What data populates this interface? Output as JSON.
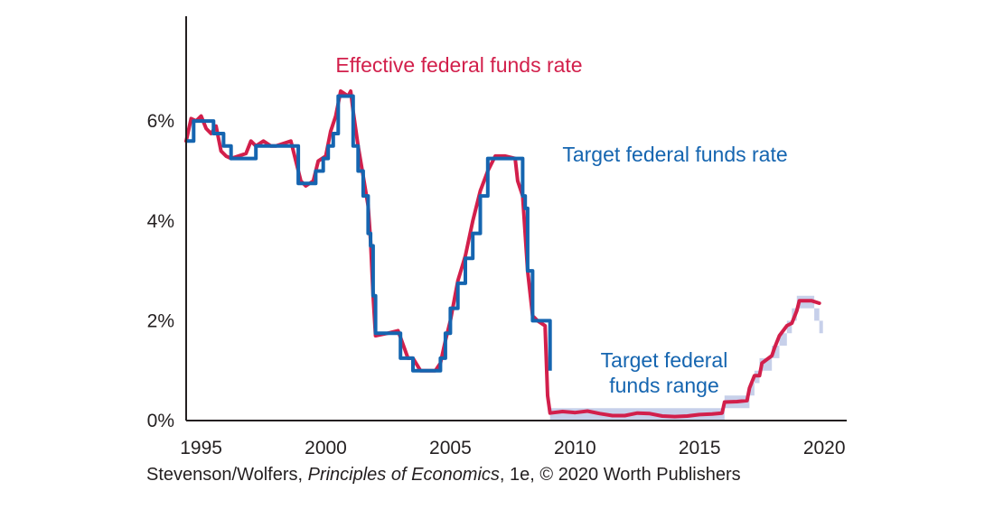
{
  "chart_data": {
    "type": "line",
    "title": "",
    "xlabel": "",
    "ylabel": "",
    "xlim": [
      1994.4,
      2020.9
    ],
    "ylim": [
      0,
      8.1
    ],
    "x_ticks": [
      1995,
      2000,
      2005,
      2010,
      2015,
      2020
    ],
    "y_ticks": [
      {
        "value": 0,
        "label": "0%"
      },
      {
        "value": 2,
        "label": "2%"
      },
      {
        "value": 4,
        "label": "4%"
      },
      {
        "value": 6,
        "label": "6%"
      }
    ],
    "grid": false,
    "legend": "none (series labeled directly on plot)",
    "colors": {
      "effective": "#d21f4b",
      "target": "#1565b0",
      "range": "#c7d0ea",
      "axis": "#231f20"
    },
    "series": [
      {
        "name": "Effective federal funds rate",
        "note": "monthly effective rate, noisy around target",
        "x": [
          1994.4,
          1994.6,
          1994.8,
          1995.0,
          1995.2,
          1995.4,
          1995.6,
          1995.8,
          1996.0,
          1996.2,
          1996.5,
          1996.8,
          1997.0,
          1997.2,
          1997.5,
          1997.8,
          1998.0,
          1998.3,
          1998.6,
          1998.8,
          1999.0,
          1999.2,
          1999.5,
          1999.7,
          2000.0,
          2000.2,
          2000.4,
          2000.6,
          2000.9,
          2001.0,
          2001.1,
          2001.3,
          2001.5,
          2001.7,
          2001.8,
          2001.9,
          2002.0,
          2002.5,
          2002.9,
          2003.3,
          2003.5,
          2003.8,
          2004.2,
          2004.4,
          2004.6,
          2004.8,
          2005.0,
          2005.3,
          2005.6,
          2005.9,
          2006.2,
          2006.5,
          2006.8,
          2007.2,
          2007.6,
          2007.7,
          2007.9,
          2008.1,
          2008.3,
          2008.5,
          2008.8,
          2008.9,
          2009.0,
          2009.5,
          2010.0,
          2010.5,
          2011.0,
          2011.5,
          2012.0,
          2012.5,
          2013.0,
          2013.5,
          2014.0,
          2014.5,
          2015.0,
          2015.5,
          2015.9,
          2016.0,
          2016.5,
          2016.9,
          2017.0,
          2017.2,
          2017.4,
          2017.5,
          2017.9,
          2018.0,
          2018.2,
          2018.5,
          2018.7,
          2018.9,
          2019.0,
          2019.5,
          2019.8
        ],
        "values": [
          5.6,
          6.05,
          6.0,
          6.1,
          5.85,
          5.75,
          5.9,
          5.4,
          5.3,
          5.25,
          5.3,
          5.35,
          5.6,
          5.5,
          5.6,
          5.5,
          5.5,
          5.55,
          5.6,
          5.2,
          4.8,
          4.7,
          4.8,
          5.2,
          5.3,
          5.8,
          6.1,
          6.6,
          6.5,
          6.6,
          6.2,
          5.5,
          4.9,
          4.3,
          3.6,
          2.5,
          1.7,
          1.75,
          1.8,
          1.25,
          1.25,
          1.0,
          1.0,
          1.0,
          1.15,
          1.6,
          2.0,
          2.8,
          3.3,
          4.0,
          4.6,
          5.0,
          5.3,
          5.3,
          5.25,
          4.8,
          4.5,
          3.0,
          2.1,
          2.0,
          1.9,
          0.5,
          0.15,
          0.18,
          0.16,
          0.19,
          0.14,
          0.1,
          0.1,
          0.15,
          0.14,
          0.09,
          0.08,
          0.09,
          0.12,
          0.13,
          0.15,
          0.37,
          0.38,
          0.4,
          0.65,
          0.9,
          0.9,
          1.15,
          1.3,
          1.45,
          1.7,
          1.9,
          1.95,
          2.2,
          2.4,
          2.4,
          2.35
        ]
      },
      {
        "name": "Target federal funds rate",
        "note": "step function, ends at end of 2008",
        "x": [
          1994.4,
          1994.7,
          1995.0,
          1995.5,
          1995.9,
          1996.2,
          1997.2,
          1998.7,
          1998.9,
          1999.5,
          1999.6,
          1999.9,
          2000.1,
          2000.3,
          2000.5,
          2001.0,
          2001.1,
          2001.3,
          2001.5,
          2001.7,
          2001.8,
          2001.9,
          2002.0,
          2002.8,
          2003.0,
          2003.5,
          2004.5,
          2004.6,
          2004.8,
          2005.0,
          2005.3,
          2005.6,
          2005.9,
          2006.2,
          2006.5,
          2007.7,
          2007.9,
          2008.0,
          2008.1,
          2008.3,
          2008.8,
          2009.0
        ],
        "values": [
          5.6,
          6.0,
          6.0,
          5.75,
          5.5,
          5.25,
          5.5,
          5.5,
          4.75,
          4.75,
          5.0,
          5.25,
          5.5,
          5.75,
          6.5,
          6.5,
          5.5,
          5.0,
          4.5,
          3.75,
          3.5,
          2.5,
          1.75,
          1.75,
          1.25,
          1.0,
          1.0,
          1.25,
          1.75,
          2.25,
          2.75,
          3.25,
          3.75,
          4.5,
          5.25,
          5.25,
          4.5,
          4.25,
          3.0,
          2.0,
          2.0,
          1.0
        ]
      },
      {
        "name": "Target federal funds range",
        "note": "shaded band from 2009 onward",
        "x": [
          2009.0,
          2015.9,
          2016.0,
          2016.9,
          2017.0,
          2017.2,
          2017.4,
          2017.9,
          2018.2,
          2018.5,
          2018.7,
          2018.9,
          2019.6,
          2019.8
        ],
        "lower": [
          0.0,
          0.0,
          0.25,
          0.25,
          0.5,
          0.75,
          1.0,
          1.25,
          1.5,
          1.75,
          2.0,
          2.25,
          2.0,
          1.75
        ],
        "upper": [
          0.25,
          0.25,
          0.5,
          0.5,
          0.75,
          1.0,
          1.25,
          1.5,
          1.75,
          2.0,
          2.25,
          2.5,
          2.25,
          2.0
        ]
      }
    ],
    "annotations": [
      {
        "text": "Effective federal funds rate",
        "color": "#d21f4b"
      },
      {
        "text": "Target federal funds rate",
        "color": "#1565b0"
      },
      {
        "text_lines": [
          "Target federal",
          "funds range"
        ],
        "color": "#1565b0"
      }
    ]
  },
  "credit": {
    "before": "Stevenson/Wolfers, ",
    "book": "Principles of Economics",
    "after": ", 1e, © 2020 Worth Publishers"
  }
}
